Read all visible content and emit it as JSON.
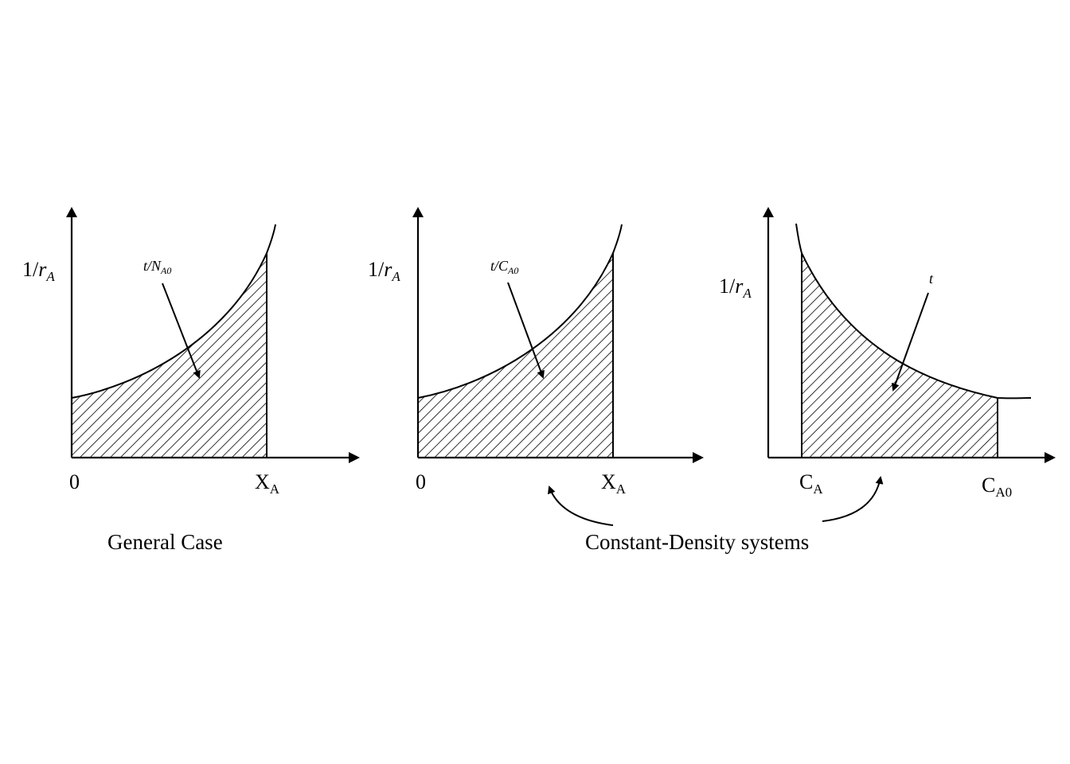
{
  "panels": [
    {
      "y_axis_label": {
        "main": "1/",
        "var": "r",
        "sub": "A"
      },
      "area_label": {
        "main": "t/N",
        "sub": "A0"
      },
      "x_labels": [
        {
          "main": "0",
          "sub": ""
        },
        {
          "main": "X",
          "sub": "A"
        }
      ],
      "shading": "hatched"
    },
    {
      "y_axis_label": {
        "main": "1/",
        "var": "r",
        "sub": "A"
      },
      "area_label": {
        "main": "t/C",
        "sub": "A0"
      },
      "x_labels": [
        {
          "main": "0",
          "sub": ""
        },
        {
          "main": "X",
          "sub": "A"
        }
      ],
      "shading": "hatched"
    },
    {
      "y_axis_label": {
        "main": "1/",
        "var": "r",
        "sub": "A"
      },
      "area_label": {
        "main": "t",
        "sub": ""
      },
      "x_labels": [
        {
          "main": "C",
          "sub": "A"
        },
        {
          "main": "C",
          "sub": "A0"
        }
      ],
      "shading": "hatched"
    }
  ],
  "captions": {
    "general": "General Case",
    "constant_density": "Constant-Density systems"
  },
  "colors": {
    "ink": "#000000",
    "background": "#ffffff"
  }
}
